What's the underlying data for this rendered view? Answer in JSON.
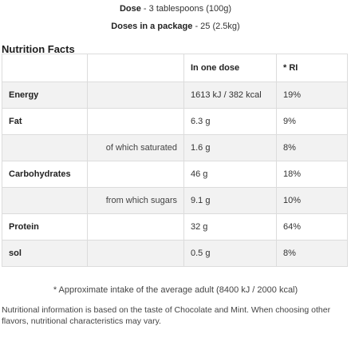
{
  "dose": {
    "label": "Dose",
    "value": " - 3 tablespoons (100g)"
  },
  "doses_in_package": {
    "label": "Doses in a package",
    "value": " - 25 (2.5kg)"
  },
  "nutrition_title": "Nutrition Facts",
  "table": {
    "headers": {
      "dose": "In one dose",
      "ri": "* RI"
    },
    "rows": [
      {
        "name": "Energy",
        "sub": "",
        "dose": "1613 kJ / 382 kcal",
        "ri": "19%"
      },
      {
        "name": "Fat",
        "sub": "",
        "dose": "6.3 g",
        "ri": "9%"
      },
      {
        "name": "",
        "sub": "of which saturated",
        "dose": "1.6 g",
        "ri": "8%"
      },
      {
        "name": "Carbohydrates",
        "sub": "",
        "dose": "46 g",
        "ri": "18%"
      },
      {
        "name": "",
        "sub": "from which sugars",
        "dose": "9.1 g",
        "ri": "10%"
      },
      {
        "name": "Protein",
        "sub": "",
        "dose": "32 g",
        "ri": "64%"
      },
      {
        "name": "sol",
        "sub": "",
        "dose": "0.5 g",
        "ri": "8%"
      }
    ]
  },
  "footnote": "* Approximate intake of the average adult (8400 kJ / 2000 kcal)",
  "disclaimer": "Nutritional information is based on the taste of Chocolate and Mint. When choosing other flavors, nutritional characteristics may vary."
}
